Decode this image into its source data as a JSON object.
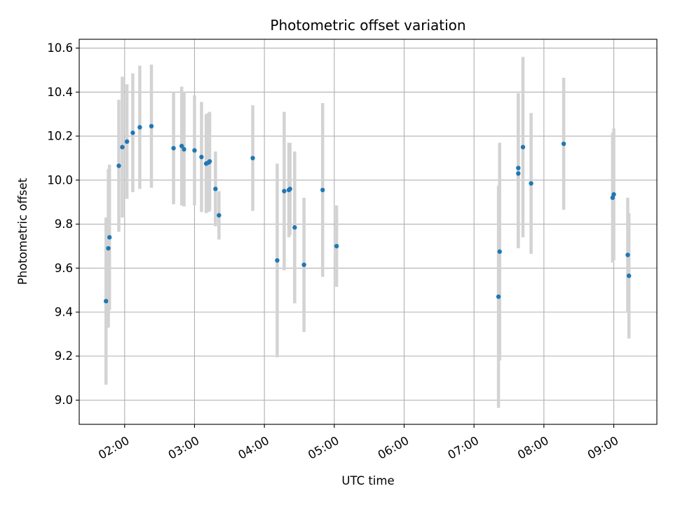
{
  "chart_data": {
    "type": "scatter",
    "title": "Photometric offset variation",
    "xlabel": "UTC time",
    "ylabel": "Photometric offset",
    "xlim": [
      "01:21",
      "09:37"
    ],
    "ylim": [
      8.89,
      10.64
    ],
    "grid": true,
    "x_ticks": [
      "02:00",
      "03:00",
      "04:00",
      "05:00",
      "06:00",
      "07:00",
      "08:00",
      "09:00"
    ],
    "y_ticks": [
      9.0,
      9.2,
      9.4,
      9.6,
      9.8,
      10.0,
      10.2,
      10.4,
      10.6
    ],
    "y_tick_labels": [
      "9.0",
      "9.2",
      "9.4",
      "9.6",
      "9.8",
      "10.0",
      "10.2",
      "10.4",
      "10.6"
    ],
    "marker_color": "#1f77b4",
    "errorbar_color": "#d3d3d3",
    "series": [
      {
        "points": [
          {
            "x": "01:44",
            "y": 9.45,
            "err": 0.38
          },
          {
            "x": "01:46",
            "y": 9.69,
            "err": 0.36
          },
          {
            "x": "01:47",
            "y": 9.74,
            "err": 0.33
          },
          {
            "x": "01:55",
            "y": 10.065,
            "err": 0.3
          },
          {
            "x": "01:58",
            "y": 10.15,
            "err": 0.32
          },
          {
            "x": "02:02",
            "y": 10.175,
            "err": 0.26
          },
          {
            "x": "02:07",
            "y": 10.215,
            "err": 0.27
          },
          {
            "x": "02:13",
            "y": 10.24,
            "err": 0.28
          },
          {
            "x": "02:23",
            "y": 10.245,
            "err": 0.28
          },
          {
            "x": "02:42",
            "y": 10.145,
            "err": 0.255
          },
          {
            "x": "02:49",
            "y": 10.155,
            "err": 0.27
          },
          {
            "x": "02:51",
            "y": 10.14,
            "err": 0.26
          },
          {
            "x": "03:00",
            "y": 10.135,
            "err": 0.25
          },
          {
            "x": "03:06",
            "y": 10.105,
            "err": 0.25
          },
          {
            "x": "03:10",
            "y": 10.075,
            "err": 0.225
          },
          {
            "x": "03:12",
            "y": 10.08,
            "err": 0.225
          },
          {
            "x": "03:13",
            "y": 10.085,
            "err": 0.225
          },
          {
            "x": "03:18",
            "y": 9.96,
            "err": 0.17
          },
          {
            "x": "03:21",
            "y": 9.84,
            "err": 0.11
          },
          {
            "x": "03:50",
            "y": 10.1,
            "err": 0.24
          },
          {
            "x": "04:11",
            "y": 9.635,
            "err": 0.44
          },
          {
            "x": "04:17",
            "y": 9.95,
            "err": 0.36
          },
          {
            "x": "04:21",
            "y": 9.955,
            "err": 0.215
          },
          {
            "x": "04:22",
            "y": 9.96,
            "err": 0.21
          },
          {
            "x": "04:26",
            "y": 9.785,
            "err": 0.345
          },
          {
            "x": "04:34",
            "y": 9.615,
            "err": 0.305
          },
          {
            "x": "04:50",
            "y": 9.955,
            "err": 0.395
          },
          {
            "x": "05:02",
            "y": 9.7,
            "err": 0.185
          },
          {
            "x": "07:21",
            "y": 9.47,
            "err": 0.505
          },
          {
            "x": "07:22",
            "y": 9.675,
            "err": 0.495
          },
          {
            "x": "07:38",
            "y": 10.03,
            "err": 0.34
          },
          {
            "x": "07:38",
            "y": 10.055,
            "err": 0.34
          },
          {
            "x": "07:42",
            "y": 10.15,
            "err": 0.41
          },
          {
            "x": "07:49",
            "y": 9.985,
            "err": 0.32
          },
          {
            "x": "08:17",
            "y": 10.165,
            "err": 0.3
          },
          {
            "x": "08:59",
            "y": 9.92,
            "err": 0.295
          },
          {
            "x": "09:00",
            "y": 9.935,
            "err": 0.3
          },
          {
            "x": "09:12",
            "y": 9.66,
            "err": 0.26
          },
          {
            "x": "09:13",
            "y": 9.565,
            "err": 0.285
          }
        ]
      }
    ]
  }
}
